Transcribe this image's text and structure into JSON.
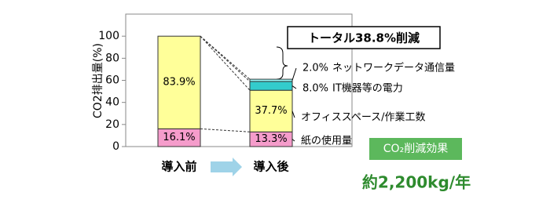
{
  "chart_data": {
    "type": "stacked_bar",
    "y_label": "CO2排出量(%)",
    "categories": [
      "導入前",
      "導入後"
    ],
    "series": [
      {
        "name": "紙の使用量",
        "color": "#f59ccb",
        "values": [
          16.1,
          13.3
        ],
        "value_labels": [
          "16.1%",
          "13.3%"
        ]
      },
      {
        "name": "オフィススペース/作業工数",
        "color": "#ffff99",
        "values": [
          83.9,
          37.7
        ],
        "value_labels": [
          "83.9%",
          "37.7%"
        ]
      },
      {
        "name": "IT機器等の電力",
        "color": "#33cccc",
        "values": [
          null,
          8.0
        ],
        "value_labels": [
          null,
          "8.0%"
        ]
      },
      {
        "name": "ネットワークデータ通信量",
        "color": "#99ffff",
        "values": [
          null,
          2.0
        ],
        "value_labels": [
          null,
          "2.0%"
        ]
      }
    ],
    "ylim": [
      0,
      120
    ],
    "yticks": [
      0,
      20,
      40,
      60,
      80,
      100
    ],
    "grid": false,
    "callout": "トータル38.8%削減",
    "effect_title": "CO₂削減効果",
    "effect_value": "約2,200kg/年"
  }
}
